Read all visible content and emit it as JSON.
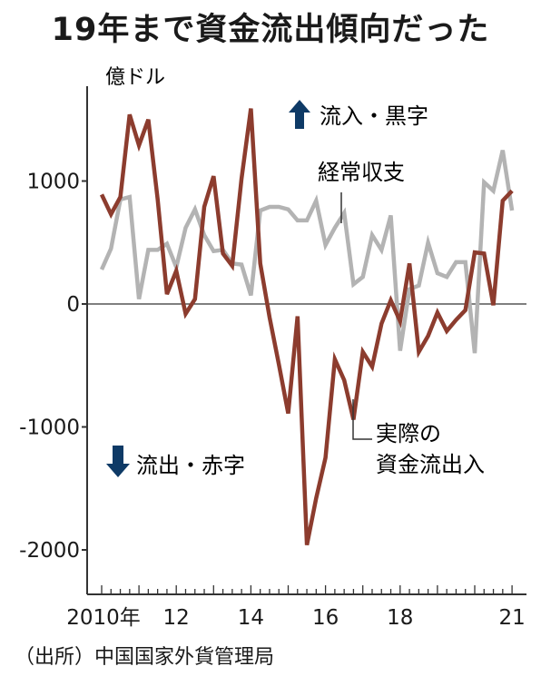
{
  "title": "19年まで資金流出傾向だった",
  "source": "（出所）中国国家外貨管理局",
  "chart_data": {
    "type": "line",
    "unit_label": "億ドル",
    "ylim": [
      -2300,
      1650
    ],
    "yticks": [
      {
        "value": 1000,
        "label": "1000"
      },
      {
        "value": 0,
        "label": "0"
      },
      {
        "value": -1000,
        "label": "-1000"
      },
      {
        "value": -2000,
        "label": "-2000"
      }
    ],
    "xlim": [
      2009.9,
      2021.35
    ],
    "xticks": [
      {
        "value": 2010.0,
        "label": "2010年"
      },
      {
        "value": 2012.0,
        "label": "12"
      },
      {
        "value": 2014.0,
        "label": "14"
      },
      {
        "value": 2016.0,
        "label": "16"
      },
      {
        "value": 2018.0,
        "label": "18"
      },
      {
        "value": 2021.0,
        "label": "21"
      }
    ],
    "legend_up": "流入・黒字",
    "legend_down": "流出・赤字",
    "series": [
      {
        "name": "経常収支",
        "color": "#b3b3b3",
        "x": [
          2010.0,
          2010.25,
          2010.5,
          2010.75,
          2011.0,
          2011.25,
          2011.5,
          2011.75,
          2012.0,
          2012.25,
          2012.5,
          2012.75,
          2013.0,
          2013.25,
          2013.5,
          2013.75,
          2014.0,
          2014.25,
          2014.5,
          2014.75,
          2015.0,
          2015.25,
          2015.5,
          2015.75,
          2016.0,
          2016.25,
          2016.5,
          2016.75,
          2017.0,
          2017.25,
          2017.5,
          2017.75,
          2018.0,
          2018.25,
          2018.5,
          2018.75,
          2019.0,
          2019.25,
          2019.5,
          2019.75,
          2020.0,
          2020.25,
          2020.5,
          2020.75,
          2021.0
        ],
        "values": [
          280,
          450,
          850,
          870,
          40,
          440,
          440,
          490,
          300,
          620,
          770,
          560,
          430,
          440,
          330,
          320,
          70,
          760,
          790,
          790,
          770,
          680,
          680,
          840,
          480,
          620,
          740,
          160,
          220,
          560,
          440,
          720,
          -380,
          120,
          150,
          500,
          250,
          220,
          340,
          340,
          -400,
          990,
          920,
          1250,
          760
        ]
      },
      {
        "name": "実際の資金流出入",
        "color": "#8c3c2e",
        "x": [
          2010.0,
          2010.25,
          2010.5,
          2010.75,
          2011.0,
          2011.25,
          2011.5,
          2011.75,
          2012.0,
          2012.25,
          2012.5,
          2012.75,
          2013.0,
          2013.25,
          2013.5,
          2013.75,
          2014.0,
          2014.25,
          2014.5,
          2014.75,
          2015.0,
          2015.25,
          2015.5,
          2015.75,
          2016.0,
          2016.25,
          2016.5,
          2016.75,
          2017.0,
          2017.25,
          2017.5,
          2017.75,
          2018.0,
          2018.25,
          2018.5,
          2018.75,
          2019.0,
          2019.25,
          2019.5,
          2019.75,
          2020.0,
          2020.25,
          2020.5,
          2020.75,
          2021.0
        ],
        "values": [
          890,
          730,
          870,
          1540,
          1290,
          1500,
          850,
          80,
          270,
          -80,
          40,
          790,
          1040,
          410,
          310,
          1020,
          1590,
          330,
          -110,
          -490,
          -890,
          -100,
          -1960,
          -1580,
          -1250,
          -450,
          -620,
          -940,
          -390,
          -510,
          -160,
          30,
          -140,
          330,
          -390,
          -260,
          -70,
          -220,
          -130,
          -50,
          420,
          410,
          -10,
          840,
          920
        ]
      }
    ],
    "annotations": {
      "current_account": "経常収支",
      "capital_flow_line1": "実際の",
      "capital_flow_line2": "資金流出入"
    }
  }
}
